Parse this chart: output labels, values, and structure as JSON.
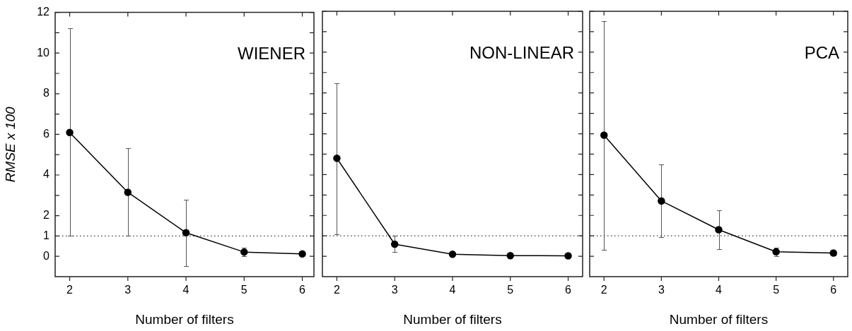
{
  "chart_data": [
    {
      "type": "line",
      "title": "WIENER",
      "xlabel": "Number of filters",
      "ylabel": "RMSE x 100",
      "x": [
        2,
        3,
        4,
        5,
        6
      ],
      "xlim": [
        1.75,
        6.2
      ],
      "xticks": [
        2,
        3,
        4,
        5,
        6
      ],
      "ylim": [
        -1,
        12
      ],
      "yticks": [
        0,
        1,
        2,
        {
          "value": 3,
          "label": null
        },
        4,
        {
          "value": 5,
          "label": null
        },
        6,
        {
          "value": 7,
          "label": null
        },
        8,
        {
          "value": 9,
          "label": null
        },
        10,
        {
          "value": 11,
          "label": null
        },
        12
      ],
      "marker": "circle",
      "grid": false,
      "series": [
        {
          "color": "#000000",
          "values": [
            6.09,
            3.15,
            1.16,
            0.21,
            0.12
          ],
          "errors": [
            [
              1.0,
              11.22
            ],
            [
              1.0,
              5.32
            ],
            [
              -0.48,
              2.8
            ],
            [
              0.0,
              0.42
            ],
            null
          ]
        }
      ],
      "ref_lines": [
        {
          "axis": "y",
          "value": 1,
          "line_style": "dotted"
        }
      ]
    },
    {
      "type": "line",
      "title": "NON-LINEAR",
      "xlabel": "Number of filters",
      "x": [
        2,
        3,
        4,
        5,
        6
      ],
      "xlim": [
        1.75,
        6.25
      ],
      "xticks": [
        2,
        3,
        4,
        5,
        6
      ],
      "ylim": [
        -1,
        12
      ],
      "yticks": [
        0,
        1,
        2,
        {
          "value": 3,
          "label": null
        },
        4,
        {
          "value": 5,
          "label": null
        },
        6,
        {
          "value": 7,
          "label": null
        },
        8,
        {
          "value": 9,
          "label": null
        },
        10,
        {
          "value": 11,
          "label": null
        },
        12
      ],
      "marker": "circle",
      "grid": false,
      "tick_labels": "x",
      "series": [
        {
          "color": "#000000",
          "values": [
            4.8,
            0.59,
            0.1,
            0.03,
            0.02
          ],
          "errors": [
            [
              1.07,
              8.49
            ],
            [
              0.2,
              0.99
            ],
            null,
            null,
            null
          ]
        }
      ],
      "ref_lines": [
        {
          "axis": "y",
          "value": 1,
          "line_style": "dotted"
        }
      ]
    },
    {
      "type": "line",
      "title": "PCA",
      "xlabel": "Number of filters",
      "x": [
        2,
        3,
        4,
        5,
        6
      ],
      "xlim": [
        1.75,
        6.25
      ],
      "xticks": [
        2,
        3,
        4,
        5,
        6
      ],
      "ylim": [
        -1,
        12
      ],
      "yticks": [
        0,
        1,
        2,
        {
          "value": 3,
          "label": null
        },
        4,
        {
          "value": 5,
          "label": null
        },
        6,
        {
          "value": 7,
          "label": null
        },
        8,
        {
          "value": 9,
          "label": null
        },
        10,
        {
          "value": 11,
          "label": null
        },
        12
      ],
      "marker": "circle",
      "grid": false,
      "tick_labels": "x",
      "series": [
        {
          "color": "#000000",
          "values": [
            5.93,
            2.71,
            1.3,
            0.22,
            0.16
          ],
          "errors": [
            [
              0.3,
              11.53
            ],
            [
              0.95,
              4.51
            ],
            [
              0.36,
              2.25
            ],
            [
              0.0,
              0.42
            ],
            [
              0.03,
              0.29
            ]
          ]
        }
      ],
      "ref_lines": [
        {
          "axis": "y",
          "value": 1,
          "line_style": "dotted"
        }
      ]
    }
  ]
}
